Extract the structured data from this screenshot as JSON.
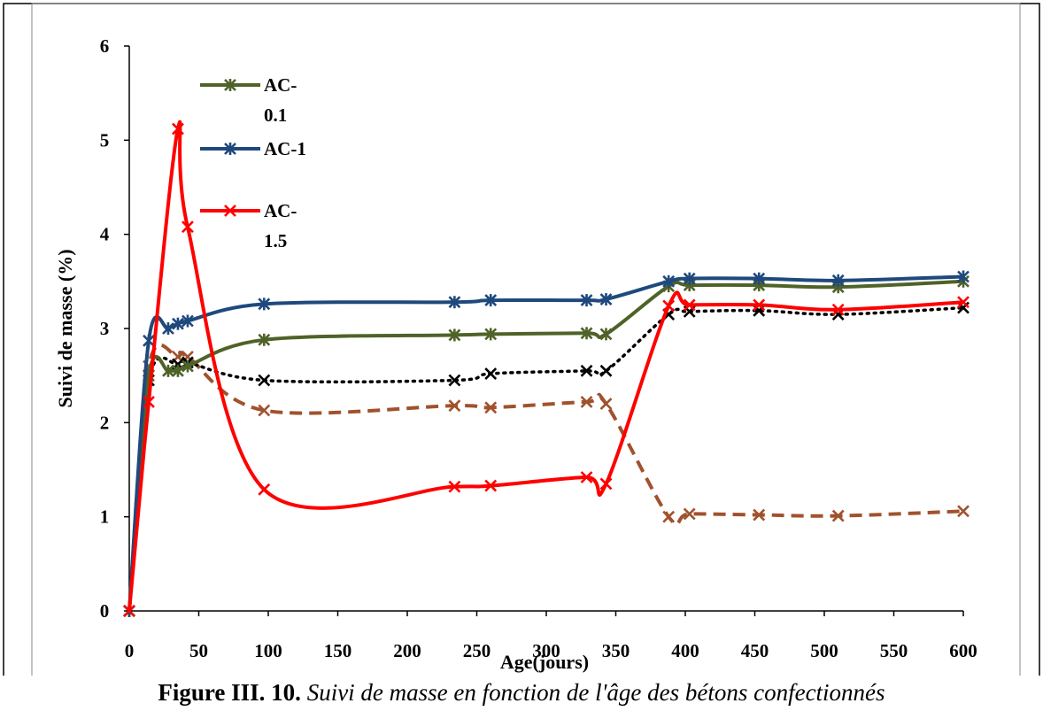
{
  "caption": {
    "label": "Figure III. 10.",
    "text": "Suivi de masse en fonction de l'âge des bétons confectionnés"
  },
  "chart_data": {
    "type": "line",
    "title": "",
    "xlabel": "Age(jours)",
    "ylabel": "Suivi de masse (%)",
    "xlim": [
      0,
      600
    ],
    "ylim": [
      0,
      6
    ],
    "x_ticks": [
      0,
      50,
      100,
      150,
      200,
      250,
      300,
      350,
      400,
      450,
      500,
      550,
      600
    ],
    "y_ticks": [
      0,
      1,
      2,
      3,
      4,
      5,
      6
    ],
    "grid": false,
    "legend_position": "top-left",
    "series": [
      {
        "name": "AC-0.1",
        "color": "#4f6228",
        "style": "solid",
        "marker": "star",
        "x": [
          0,
          14,
          28,
          35,
          42,
          97,
          234,
          260,
          329,
          343,
          388,
          403,
          453,
          510,
          600
        ],
        "y": [
          0,
          2.5,
          2.55,
          2.55,
          2.6,
          2.88,
          2.93,
          2.94,
          2.95,
          2.94,
          3.45,
          3.46,
          3.46,
          3.44,
          3.5
        ]
      },
      {
        "name": "AC-1",
        "color": "#1f497d",
        "style": "solid",
        "marker": "star",
        "x": [
          0,
          14,
          28,
          35,
          42,
          97,
          234,
          260,
          329,
          343,
          388,
          403,
          453,
          510,
          600
        ],
        "y": [
          0,
          2.87,
          3.0,
          3.05,
          3.08,
          3.26,
          3.28,
          3.3,
          3.3,
          3.31,
          3.5,
          3.53,
          3.53,
          3.51,
          3.55
        ]
      },
      {
        "name": "AC-1.5",
        "color": "#ff0000",
        "style": "solid",
        "marker": "x",
        "x": [
          0,
          14,
          35,
          42,
          97,
          234,
          260,
          329,
          343,
          388,
          403,
          453,
          510,
          600
        ],
        "y": [
          0,
          2.22,
          5.12,
          4.08,
          1.29,
          1.32,
          1.33,
          1.42,
          1.35,
          3.24,
          3.25,
          3.25,
          3.2,
          3.28
        ]
      },
      {
        "color": "#000000",
        "style": "dotted",
        "marker": "x",
        "x": [
          0,
          14,
          35,
          42,
          97,
          234,
          260,
          329,
          343,
          388,
          403,
          453,
          510,
          600
        ],
        "y": [
          0,
          2.45,
          2.62,
          2.64,
          2.45,
          2.45,
          2.52,
          2.55,
          2.55,
          3.15,
          3.18,
          3.19,
          3.15,
          3.22
        ]
      },
      {
        "color": "#a0522d",
        "style": "dashed",
        "marker": "x",
        "x": [
          0,
          14,
          35,
          42,
          97,
          234,
          260,
          329,
          343,
          388,
          403,
          453,
          510,
          600
        ],
        "y": [
          0,
          2.6,
          2.7,
          2.7,
          2.13,
          2.18,
          2.16,
          2.22,
          2.2,
          1.0,
          1.03,
          1.02,
          1.01,
          1.06
        ]
      }
    ],
    "legend": [
      {
        "lines": [
          "AC-",
          "0.1"
        ],
        "series": 0
      },
      {
        "lines": [
          "AC-1"
        ],
        "series": 1
      },
      {
        "lines": [
          "AC-",
          "1.5"
        ],
        "series": 2
      }
    ]
  }
}
